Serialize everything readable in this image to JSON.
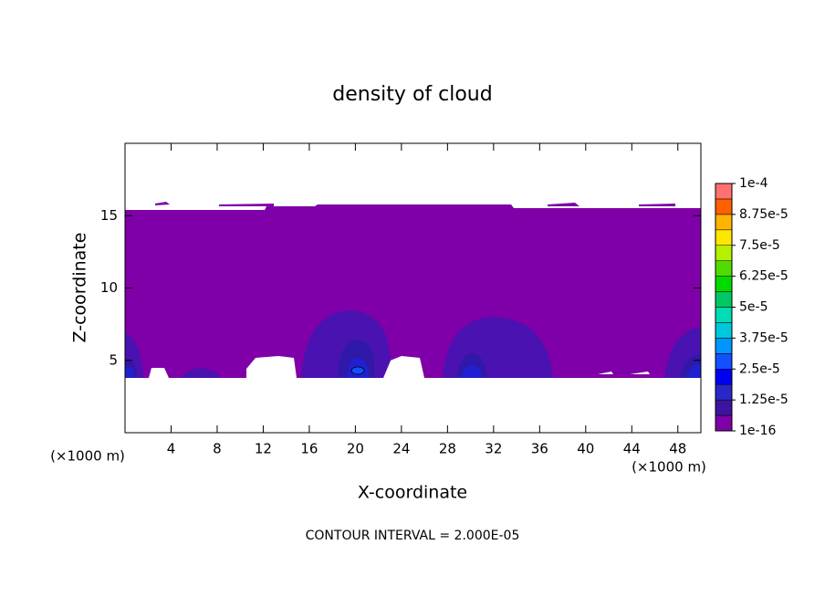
{
  "chart_data": {
    "type": "contour",
    "title": "density of cloud",
    "x_label": "X-coordinate",
    "y_label": "Z-coordinate",
    "x_unit": "(×1000 m)",
    "annotation": "CONTOUR INTERVAL = 2.000E-05",
    "xlim": [
      0,
      50
    ],
    "xticks": [
      4,
      8,
      12,
      16,
      20,
      24,
      28,
      32,
      36,
      40,
      44,
      48
    ],
    "ylim": [
      0,
      20
    ],
    "yticks": [
      5,
      10,
      15
    ],
    "colorbar": {
      "ticks": [
        {
          "value": 1e-16,
          "label": "1e-16"
        },
        {
          "value": 1.25e-05,
          "label": "1.25e-5"
        },
        {
          "value": 2.5e-05,
          "label": "2.5e-5"
        },
        {
          "value": 3.75e-05,
          "label": "3.75e-5"
        },
        {
          "value": 5e-05,
          "label": "5e-5"
        },
        {
          "value": 6.25e-05,
          "label": "6.25e-5"
        },
        {
          "value": 7.5e-05,
          "label": "7.5e-5"
        },
        {
          "value": 8.75e-05,
          "label": "8.75e-5"
        },
        {
          "value": 0.0001,
          "label": "1e-4"
        }
      ],
      "colors": [
        "#7f00a8",
        "#3c14a0",
        "#2828c8",
        "#0000f0",
        "#1450ff",
        "#0096ff",
        "#00c8dc",
        "#00dcb4",
        "#00c864",
        "#00dc00",
        "#50dc00",
        "#b4f000",
        "#ffe600",
        "#ffb400",
        "#ff6000",
        "#ff7070"
      ]
    }
  }
}
